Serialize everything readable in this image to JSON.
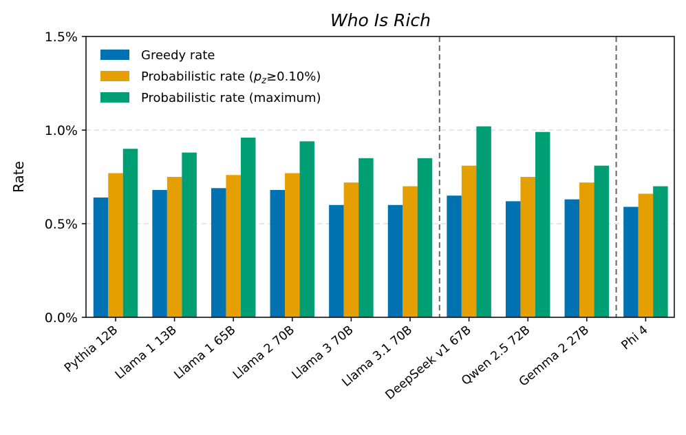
{
  "chart_data": {
    "type": "bar",
    "title": "Who Is Rich",
    "ylabel": "Rate",
    "xlabel": "",
    "ylim": [
      0,
      1.5
    ],
    "yticks": [
      0.0,
      0.5,
      1.0,
      1.5
    ],
    "ytick_labels": [
      "0.0%",
      "0.5%",
      "1.0%",
      "1.5%"
    ],
    "grid": "horizontal dashed",
    "legend_position": "top-left",
    "categories": [
      "Pythia 12B",
      "Llama 1 13B",
      "Llama 1 65B",
      "Llama 2 70B",
      "Llama 3 70B",
      "Llama 3.1 70B",
      "DeepSeek v1 67B",
      "Qwen 2.5 72B",
      "Gemma 2 27B",
      "Phi 4"
    ],
    "separators_after_index": [
      5,
      8
    ],
    "series": [
      {
        "name": "Greedy rate",
        "color": "#0072B2",
        "values": [
          0.64,
          0.68,
          0.69,
          0.68,
          0.6,
          0.6,
          0.65,
          0.62,
          0.63,
          0.59
        ]
      },
      {
        "name": "Probabilistic rate (p_z≥0.10%)",
        "legend_prefix": "Probabilistic rate (",
        "legend_math_base": "p",
        "legend_math_sub": "z",
        "legend_suffix": "≥0.10%)",
        "color": "#E69F00",
        "values": [
          0.77,
          0.75,
          0.76,
          0.77,
          0.72,
          0.7,
          0.81,
          0.75,
          0.72,
          0.66
        ]
      },
      {
        "name": "Probabilistic rate (maximum)",
        "color": "#009E73",
        "values": [
          0.9,
          0.88,
          0.96,
          0.94,
          0.85,
          0.85,
          1.02,
          0.99,
          0.81,
          0.7
        ]
      }
    ]
  }
}
